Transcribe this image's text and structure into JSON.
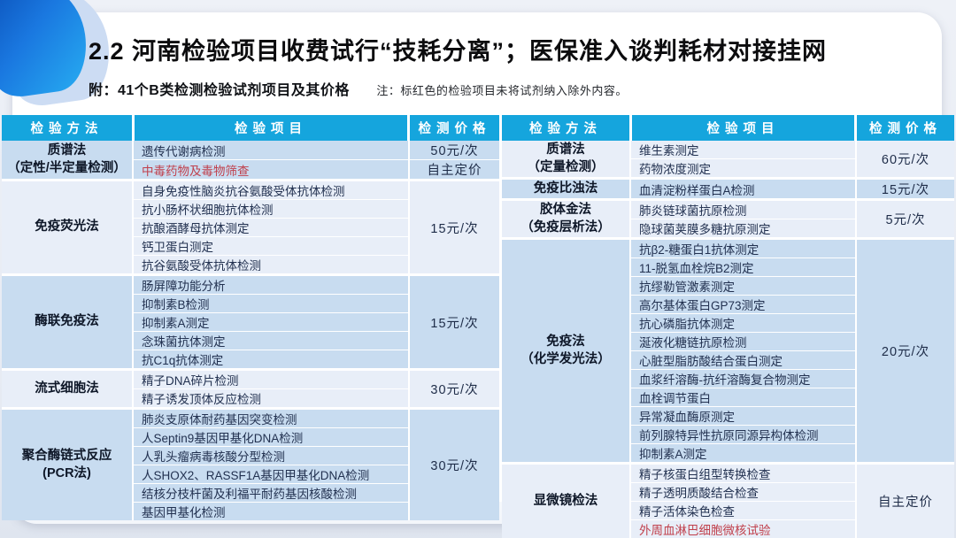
{
  "header": {
    "title": "2.2 河南检验项目收费试行“技耗分离”；医保准入谈判耗材对接挂网",
    "attachment": "附：41个B类检测检验试剂项目及其价格",
    "note": "注：标红色的检验项目未将试剂纳入除外内容。"
  },
  "colors": {
    "header_blue": "#15a5dd",
    "tint_blue": "#c8dcf0",
    "tint_light": "#e8eef8",
    "red_item": "#c0404c"
  },
  "tables": [
    {
      "headers": [
        "检验方法",
        "检验项目",
        "检测价格"
      ],
      "groups": [
        {
          "method": [
            "质谱法",
            "（定性/半定量检测）"
          ],
          "tint": "blue",
          "items": [
            {
              "text": "遗传代谢病检测",
              "red": false
            },
            {
              "text": "中毒药物及毒物筛查",
              "red": true
            }
          ],
          "prices": [
            {
              "text": "50元/次",
              "rows": 1
            },
            {
              "text": "自主定价",
              "rows": 1
            }
          ]
        },
        {
          "method": [
            "免疫荧光法"
          ],
          "tint": "light",
          "items": [
            {
              "text": "自身免疫性脑炎抗谷氨酸受体抗体检测",
              "red": false
            },
            {
              "text": "抗小肠杯状细胞抗体检测",
              "red": false
            },
            {
              "text": "抗酿酒酵母抗体测定",
              "red": false
            },
            {
              "text": "钙卫蛋白测定",
              "red": false
            },
            {
              "text": "抗谷氨酸受体抗体检测",
              "red": false
            }
          ],
          "prices": [
            {
              "text": "15元/次",
              "rows": 5
            }
          ]
        },
        {
          "method": [
            "酶联免疫法"
          ],
          "tint": "blue",
          "items": [
            {
              "text": "肠屏障功能分析",
              "red": false
            },
            {
              "text": "抑制素B检测",
              "red": false
            },
            {
              "text": "抑制素A测定",
              "red": false
            },
            {
              "text": "念珠菌抗体测定",
              "red": false
            },
            {
              "text": "抗C1q抗体测定",
              "red": false
            }
          ],
          "prices": [
            {
              "text": "15元/次",
              "rows": 5
            }
          ]
        },
        {
          "method": [
            "流式细胞法"
          ],
          "tint": "light",
          "items": [
            {
              "text": "精子DNA碎片检测",
              "red": false
            },
            {
              "text": "精子诱发顶体反应检测",
              "red": false
            }
          ],
          "prices": [
            {
              "text": "30元/次",
              "rows": 2
            }
          ]
        },
        {
          "method": [
            "聚合酶链式反应",
            "(PCR法)"
          ],
          "tint": "blue",
          "items": [
            {
              "text": "肺炎支原体耐药基因突变检测",
              "red": false
            },
            {
              "text": "人Septin9基因甲基化DNA检测",
              "red": false
            },
            {
              "text": "人乳头瘤病毒核酸分型检测",
              "red": false
            },
            {
              "text": "人SHOX2、RASSF1A基因甲基化DNA检测",
              "red": false
            },
            {
              "text": "结核分枝杆菌及利福平耐药基因核酸检测",
              "red": false
            },
            {
              "text": "基因甲基化检测",
              "red": false
            }
          ],
          "prices": [
            {
              "text": "30元/次",
              "rows": 6
            }
          ]
        }
      ]
    },
    {
      "headers": [
        "检验方法",
        "检验项目",
        "检测价格"
      ],
      "groups": [
        {
          "method": [
            "质谱法",
            "（定量检测）"
          ],
          "tint": "light",
          "items": [
            {
              "text": "维生素测定",
              "red": false
            },
            {
              "text": "药物浓度测定",
              "red": false
            }
          ],
          "prices": [
            {
              "text": "60元/次",
              "rows": 2
            }
          ]
        },
        {
          "method": [
            "免疫比浊法"
          ],
          "tint": "blue",
          "items": [
            {
              "text": "血清淀粉样蛋白A检测",
              "red": false
            }
          ],
          "prices": [
            {
              "text": "15元/次",
              "rows": 1
            }
          ]
        },
        {
          "method": [
            "胶体金法",
            "（免疫层析法）"
          ],
          "tint": "light",
          "items": [
            {
              "text": "肺炎链球菌抗原检测",
              "red": false
            },
            {
              "text": "隐球菌荚膜多糖抗原测定",
              "red": false
            }
          ],
          "prices": [
            {
              "text": "5元/次",
              "rows": 2
            }
          ]
        },
        {
          "method": [
            "免疫法",
            "（化学发光法）"
          ],
          "tint": "blue",
          "items": [
            {
              "text": "抗β2-糖蛋白1抗体测定",
              "red": false
            },
            {
              "text": "11-脱氢血栓烷B2测定",
              "red": false
            },
            {
              "text": "抗缪勒管激素测定",
              "red": false
            },
            {
              "text": "高尔基体蛋白GP73测定",
              "red": false
            },
            {
              "text": "抗心磷脂抗体测定",
              "red": false
            },
            {
              "text": "涎液化糖链抗原检测",
              "red": false
            },
            {
              "text": "心脏型脂肪酸结合蛋白测定",
              "red": false
            },
            {
              "text": "血浆纤溶酶-抗纤溶酶复合物测定",
              "red": false
            },
            {
              "text": "血栓调节蛋白",
              "red": false
            },
            {
              "text": "异常凝血酶原测定",
              "red": false
            },
            {
              "text": "前列腺特异性抗原同源异构体检测",
              "red": false
            },
            {
              "text": "抑制素A测定",
              "red": false
            }
          ],
          "prices": [
            {
              "text": "20元/次",
              "rows": 12
            }
          ]
        },
        {
          "method": [
            "显微镜检法"
          ],
          "tint": "light",
          "items": [
            {
              "text": "精子核蛋白组型转换检查",
              "red": false
            },
            {
              "text": "精子透明质酸结合检查",
              "red": false
            },
            {
              "text": "精子活体染色检查",
              "red": false
            },
            {
              "text": "外周血淋巴细胞微核试验",
              "red": true
            }
          ],
          "prices": [
            {
              "text": "自主定价",
              "rows": 4
            }
          ]
        }
      ]
    }
  ]
}
